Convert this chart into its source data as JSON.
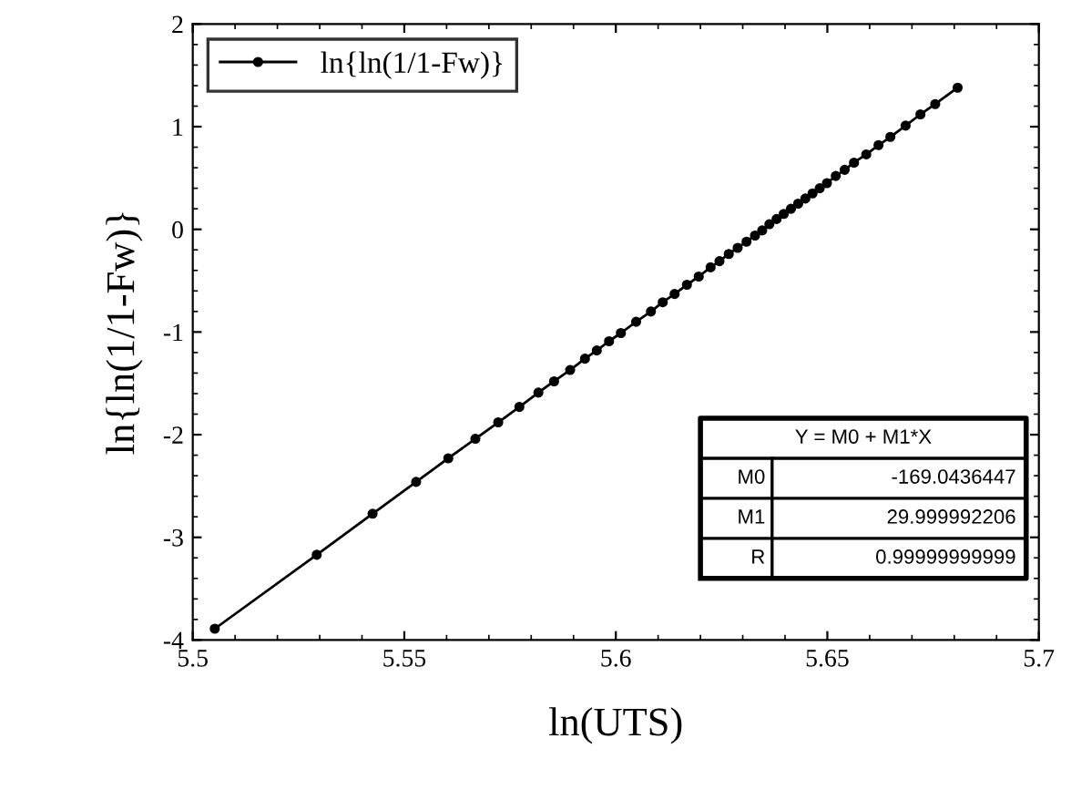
{
  "chart_data": {
    "type": "line",
    "xlabel": "ln(UTS)",
    "ylabel": "ln{ln(1/1-Fw)}",
    "x": [
      5.5052,
      5.5293,
      5.5425,
      5.5528,
      5.5604,
      5.5668,
      5.5722,
      5.5772,
      5.5817,
      5.5854,
      5.5892,
      5.5927,
      5.5955,
      5.5984,
      5.6012,
      5.6048,
      5.6083,
      5.6111,
      5.6139,
      5.6168,
      5.6196,
      5.6224,
      5.6245,
      5.6267,
      5.6288,
      5.6309,
      5.6329,
      5.6346,
      5.6363,
      5.638,
      5.6397,
      5.6414,
      5.6431,
      5.6448,
      5.6465,
      5.6482,
      5.6499,
      5.652,
      5.6541,
      5.6563,
      5.6592,
      5.6621,
      5.6649,
      5.6685,
      5.672,
      5.6755,
      5.6808
    ],
    "series": [
      {
        "name": "ln{ln(1/1-Fw)}",
        "color": "#000000",
        "values": [
          -3.89,
          -3.17,
          -2.77,
          -2.46,
          -2.23,
          -2.04,
          -1.88,
          -1.73,
          -1.59,
          -1.48,
          -1.37,
          -1.26,
          -1.18,
          -1.09,
          -1.01,
          -0.9,
          -0.8,
          -0.71,
          -0.63,
          -0.54,
          -0.46,
          -0.37,
          -0.31,
          -0.24,
          -0.18,
          -0.12,
          -0.06,
          -0.01,
          0.05,
          0.1,
          0.15,
          0.2,
          0.25,
          0.3,
          0.35,
          0.4,
          0.45,
          0.52,
          0.58,
          0.65,
          0.73,
          0.82,
          0.9,
          1.01,
          1.12,
          1.22,
          1.38
        ]
      }
    ],
    "marker": "circle",
    "line_style": "solid",
    "legend": "top left",
    "grid": false,
    "xlim": [
      5.5,
      5.7
    ],
    "xticks": [
      5.5,
      5.55,
      5.6,
      5.65,
      5.7
    ],
    "ylim": [
      -4,
      2
    ],
    "yticks": [
      -4,
      -3,
      -2,
      -1,
      0,
      1,
      2
    ],
    "annotations": [
      "Y = M0 + M1*X",
      "M0",
      "-169.0436447",
      "M1",
      "29.999992206",
      "R",
      "0.99999999999"
    ]
  }
}
